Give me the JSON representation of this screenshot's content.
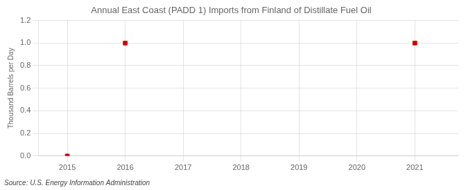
{
  "chart_data": {
    "type": "scatter",
    "title": "Annual East Coast (PADD 1) Imports from Finland of Distillate Fuel Oil",
    "ylabel": "Thousand Barrels per Day",
    "annotation": "Source: U.S. Energy Information Administration",
    "x": [
      2015,
      2016,
      2021
    ],
    "values": [
      0.0,
      1.0,
      1.0
    ],
    "color": "#cc0000",
    "marker": "square",
    "xlim": [
      2014.5,
      2021.75
    ],
    "xticks": [
      2015,
      2016,
      2017,
      2018,
      2019,
      2020,
      2021
    ],
    "ylim": [
      0,
      1.2
    ],
    "yticks": [
      {
        "value": 0.0,
        "label": "0.0"
      },
      0.2,
      0.4,
      0.6,
      0.8,
      {
        "value": 1.0,
        "label": "1.0"
      },
      1.2
    ],
    "grid": true
  }
}
